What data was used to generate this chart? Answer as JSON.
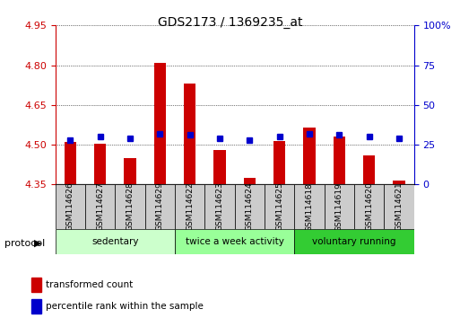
{
  "title": "GDS2173 / 1369235_at",
  "samples": [
    "GSM114626",
    "GSM114627",
    "GSM114628",
    "GSM114629",
    "GSM114622",
    "GSM114623",
    "GSM114624",
    "GSM114625",
    "GSM114618",
    "GSM114619",
    "GSM114620",
    "GSM114621"
  ],
  "red_values": [
    4.51,
    4.505,
    4.45,
    4.81,
    4.73,
    4.48,
    4.375,
    4.515,
    4.565,
    4.53,
    4.46,
    4.365
  ],
  "blue_values": [
    28,
    30,
    29,
    32,
    31,
    29,
    28,
    30,
    32,
    31,
    30,
    29
  ],
  "y_min": 4.35,
  "y_max": 4.95,
  "y_ticks": [
    4.35,
    4.5,
    4.65,
    4.8,
    4.95
  ],
  "y2_ticks": [
    0,
    25,
    50,
    75,
    100
  ],
  "groups": [
    {
      "label": "sedentary",
      "start": 0,
      "end": 4,
      "color": "#ccffcc"
    },
    {
      "label": "twice a week activity",
      "start": 4,
      "end": 8,
      "color": "#99ff99"
    },
    {
      "label": "voluntary running",
      "start": 8,
      "end": 12,
      "color": "#33cc33"
    }
  ],
  "bar_color": "#cc0000",
  "dot_color": "#0000cc",
  "base_value": 4.35,
  "bar_width": 0.4,
  "left_axis_color": "#cc0000",
  "right_axis_color": "#0000cc",
  "protocol_label": "protocol",
  "legend_red": "transformed count",
  "legend_blue": "percentile rank within the sample"
}
